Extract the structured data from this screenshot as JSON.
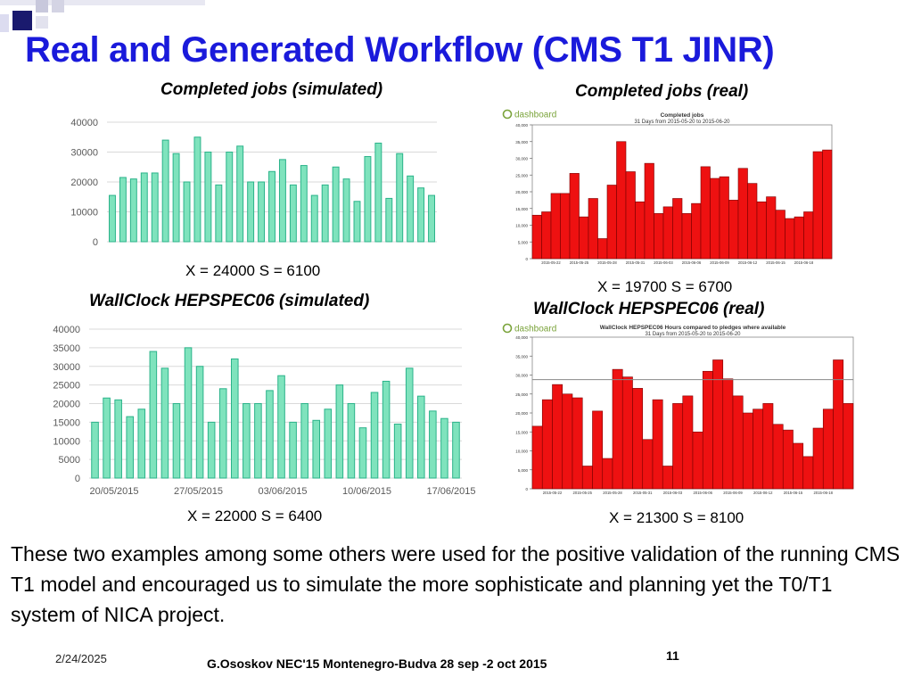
{
  "slide": {
    "title": "Real and Generated Workflow (CMS T1 JINR)",
    "paragraph": "These two examples among some others were used for the positive validation of the running CMS T1 model and encouraged us to simulate the more sophisticate and planning yet the T0/T1 system of NICA project.",
    "date": "2/24/2025",
    "footer": "G.Ososkov NEC'15 Montenegro-Budva 28 sep -2 oct 2015",
    "page_number": "11",
    "colors": {
      "title": "#1a1adb",
      "sim_bar": "#7fe3bd",
      "sim_bar_edge": "#2bb38a",
      "real_bar": "#ee1111"
    }
  },
  "panels": {
    "completed_sim": {
      "title": "Completed jobs (simulated)",
      "stat": "X = 24000  S = 6100"
    },
    "completed_real": {
      "title": "Completed jobs (real)",
      "stat": "X = 19700  S = 6700",
      "header": "Completed jobs",
      "subheader": "31 Days from 2015-05-20 to 2015-06-20",
      "logo": "dashboard"
    },
    "wallclock_sim": {
      "title": "WallClock HEPSPEC06 (simulated)",
      "stat": "X = 22000  S = 6400"
    },
    "wallclock_real": {
      "title": "WallClock HEPSPEC06 (real)",
      "stat": "X = 21300  S = 8100",
      "header": "WallClock HEPSPEC06 Hours compared to pledges where available",
      "subheader": "31 Days from 2015-05-20 to 2015-06-20",
      "logo": "dashboard"
    }
  },
  "chart_data": [
    {
      "id": "completed_sim",
      "type": "bar",
      "title": "Completed jobs (simulated)",
      "ylim": [
        0,
        40000
      ],
      "yticks": [
        "0",
        "10000",
        "20000",
        "30000",
        "40000"
      ],
      "values": [
        15500,
        21500,
        21000,
        23000,
        23000,
        34000,
        29500,
        20000,
        35000,
        30000,
        19000,
        30000,
        32000,
        20000,
        20000,
        23500,
        27500,
        19000,
        25500,
        15500,
        19000,
        25000,
        21000,
        13500,
        28500,
        33000,
        14500,
        29500,
        22000,
        18000,
        15500
      ]
    },
    {
      "id": "completed_real",
      "type": "bar",
      "title": "Completed jobs",
      "ylim": [
        0,
        40000
      ],
      "yticks": [
        "0",
        "5,000",
        "10,000",
        "15,000",
        "20,000",
        "25,000",
        "30,000",
        "35,000",
        "40,000"
      ],
      "xticks": [
        "2015-05-22",
        "2015-05-25",
        "2015-05-28",
        "2015-05-31",
        "2015-06-03",
        "2015-06-06",
        "2015-06-09",
        "2015-06-12",
        "2015-06-15",
        "2015-06-18"
      ],
      "values": [
        13000,
        14000,
        19500,
        19500,
        25500,
        12500,
        18000,
        6000,
        22000,
        35000,
        26000,
        17000,
        28500,
        13500,
        15500,
        18000,
        13500,
        16500,
        27500,
        24000,
        24500,
        17500,
        27000,
        22500,
        17000,
        18500,
        14500,
        12000,
        12500,
        14000,
        32000,
        32500
      ]
    },
    {
      "id": "wallclock_sim",
      "type": "bar",
      "title": "WallClock HEPSPEC06 (simulated)",
      "ylim": [
        0,
        40000
      ],
      "yticks": [
        "0",
        "5000",
        "10000",
        "15000",
        "20000",
        "25000",
        "30000",
        "35000",
        "40000"
      ],
      "xticks": [
        "20/05/2015",
        "27/05/2015",
        "03/06/2015",
        "10/06/2015",
        "17/06/2015"
      ],
      "values": [
        15000,
        21500,
        21000,
        16500,
        18500,
        34000,
        29500,
        20000,
        35000,
        30000,
        15000,
        24000,
        32000,
        20000,
        20000,
        23500,
        27500,
        15000,
        20000,
        15500,
        18500,
        25000,
        20000,
        13500,
        23000,
        26000,
        14500,
        29500,
        22000,
        18000,
        16000,
        15000
      ]
    },
    {
      "id": "wallclock_real",
      "type": "bar",
      "title": "WallClock HEPSPEC06 Hours compared to pledges where available",
      "ylim": [
        0,
        40000
      ],
      "yticks": [
        "0",
        "5,000",
        "10,000",
        "15,000",
        "20,000",
        "25,000",
        "30,000",
        "35,000",
        "40,000"
      ],
      "xticks": [
        "2015-05-22",
        "2015-05-25",
        "2015-05-28",
        "2015-05-31",
        "2015-06-03",
        "2015-06-06",
        "2015-06-09",
        "2015-06-12",
        "2015-06-15",
        "2015-06-18"
      ],
      "pledge_line": 28800,
      "values": [
        16500,
        23500,
        27500,
        25000,
        24000,
        6000,
        20500,
        8000,
        31500,
        29500,
        26500,
        13000,
        23500,
        6000,
        22500,
        24500,
        15000,
        31000,
        34000,
        29000,
        24500,
        20000,
        21000,
        22500,
        17000,
        15500,
        12000,
        8500,
        16000,
        21000,
        34000,
        22500
      ]
    }
  ]
}
